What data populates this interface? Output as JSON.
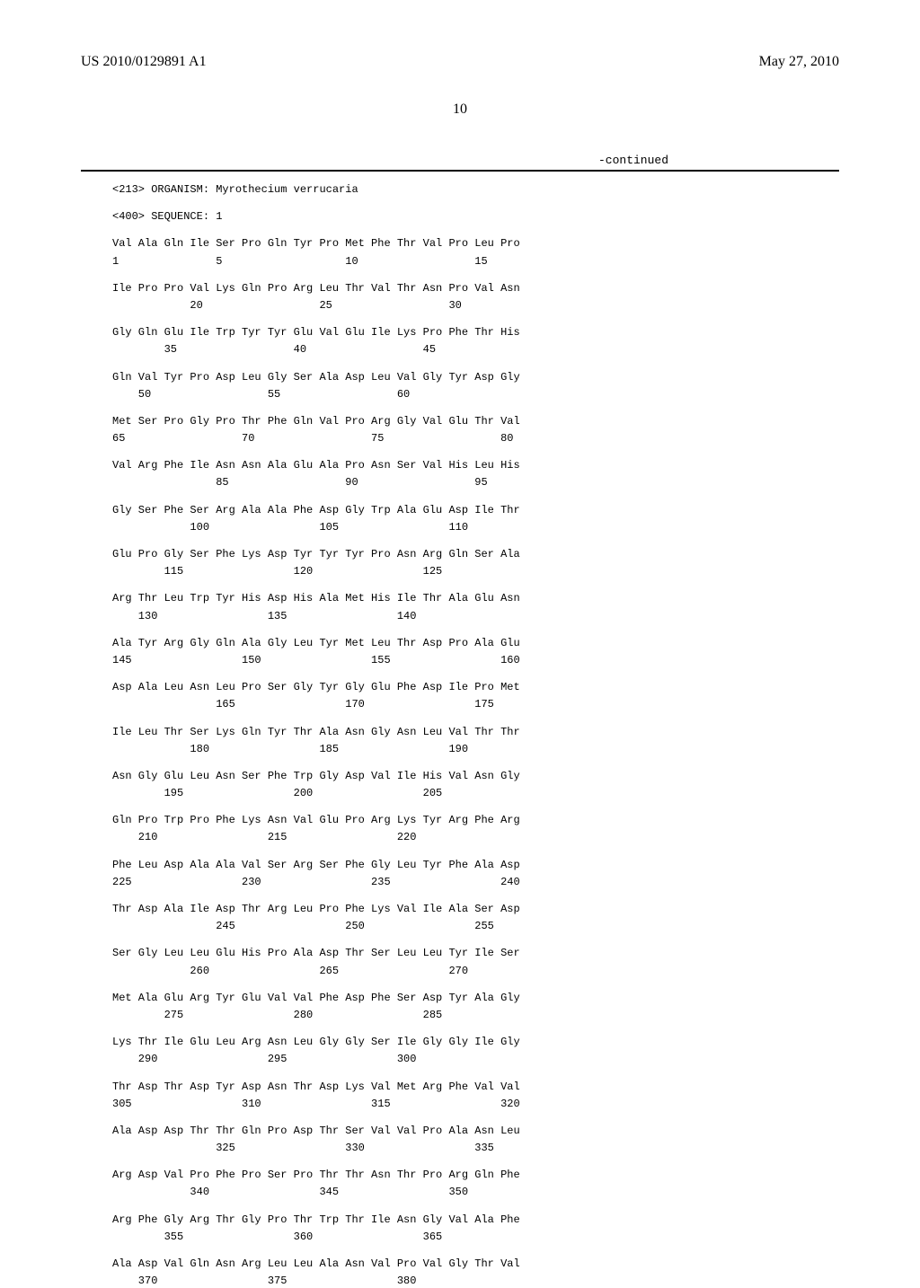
{
  "header": {
    "publication_number": "US 2010/0129891 A1",
    "date": "May 27, 2010"
  },
  "page_number": "10",
  "continued_label": "-continued",
  "organism_line": "<213> ORGANISM: Myrothecium verrucaria",
  "sequence_line": "<400> SEQUENCE: 1",
  "sequence_rows": [
    {
      "aa": "Val Ala Gln Ile Ser Pro Gln Tyr Pro Met Phe Thr Val Pro Leu Pro",
      "nums": "1               5                   10                  15"
    },
    {
      "aa": "Ile Pro Pro Val Lys Gln Pro Arg Leu Thr Val Thr Asn Pro Val Asn",
      "nums": "            20                  25                  30"
    },
    {
      "aa": "Gly Gln Glu Ile Trp Tyr Tyr Glu Val Glu Ile Lys Pro Phe Thr His",
      "nums": "        35                  40                  45"
    },
    {
      "aa": "Gln Val Tyr Pro Asp Leu Gly Ser Ala Asp Leu Val Gly Tyr Asp Gly",
      "nums": "    50                  55                  60"
    },
    {
      "aa": "Met Ser Pro Gly Pro Thr Phe Gln Val Pro Arg Gly Val Glu Thr Val",
      "nums": "65                  70                  75                  80"
    },
    {
      "aa": "Val Arg Phe Ile Asn Asn Ala Glu Ala Pro Asn Ser Val His Leu His",
      "nums": "                85                  90                  95"
    },
    {
      "aa": "Gly Ser Phe Ser Arg Ala Ala Phe Asp Gly Trp Ala Glu Asp Ile Thr",
      "nums": "            100                 105                 110"
    },
    {
      "aa": "Glu Pro Gly Ser Phe Lys Asp Tyr Tyr Tyr Pro Asn Arg Gln Ser Ala",
      "nums": "        115                 120                 125"
    },
    {
      "aa": "Arg Thr Leu Trp Tyr His Asp His Ala Met His Ile Thr Ala Glu Asn",
      "nums": "    130                 135                 140"
    },
    {
      "aa": "Ala Tyr Arg Gly Gln Ala Gly Leu Tyr Met Leu Thr Asp Pro Ala Glu",
      "nums": "145                 150                 155                 160"
    },
    {
      "aa": "Asp Ala Leu Asn Leu Pro Ser Gly Tyr Gly Glu Phe Asp Ile Pro Met",
      "nums": "                165                 170                 175"
    },
    {
      "aa": "Ile Leu Thr Ser Lys Gln Tyr Thr Ala Asn Gly Asn Leu Val Thr Thr",
      "nums": "            180                 185                 190"
    },
    {
      "aa": "Asn Gly Glu Leu Asn Ser Phe Trp Gly Asp Val Ile His Val Asn Gly",
      "nums": "        195                 200                 205"
    },
    {
      "aa": "Gln Pro Trp Pro Phe Lys Asn Val Glu Pro Arg Lys Tyr Arg Phe Arg",
      "nums": "    210                 215                 220"
    },
    {
      "aa": "Phe Leu Asp Ala Ala Val Ser Arg Ser Phe Gly Leu Tyr Phe Ala Asp",
      "nums": "225                 230                 235                 240"
    },
    {
      "aa": "Thr Asp Ala Ile Asp Thr Arg Leu Pro Phe Lys Val Ile Ala Ser Asp",
      "nums": "                245                 250                 255"
    },
    {
      "aa": "Ser Gly Leu Leu Glu His Pro Ala Asp Thr Ser Leu Leu Tyr Ile Ser",
      "nums": "            260                 265                 270"
    },
    {
      "aa": "Met Ala Glu Arg Tyr Glu Val Val Phe Asp Phe Ser Asp Tyr Ala Gly",
      "nums": "        275                 280                 285"
    },
    {
      "aa": "Lys Thr Ile Glu Leu Arg Asn Leu Gly Gly Ser Ile Gly Gly Ile Gly",
      "nums": "    290                 295                 300"
    },
    {
      "aa": "Thr Asp Thr Asp Tyr Asp Asn Thr Asp Lys Val Met Arg Phe Val Val",
      "nums": "305                 310                 315                 320"
    },
    {
      "aa": "Ala Asp Asp Thr Thr Gln Pro Asp Thr Ser Val Val Pro Ala Asn Leu",
      "nums": "                325                 330                 335"
    },
    {
      "aa": "Arg Asp Val Pro Phe Pro Ser Pro Thr Thr Asn Thr Pro Arg Gln Phe",
      "nums": "            340                 345                 350"
    },
    {
      "aa": "Arg Phe Gly Arg Thr Gly Pro Thr Trp Thr Ile Asn Gly Val Ala Phe",
      "nums": "        355                 360                 365"
    },
    {
      "aa": "Ala Asp Val Gln Asn Arg Leu Leu Ala Asn Val Pro Val Gly Thr Val",
      "nums": "    370                 375                 380"
    }
  ]
}
